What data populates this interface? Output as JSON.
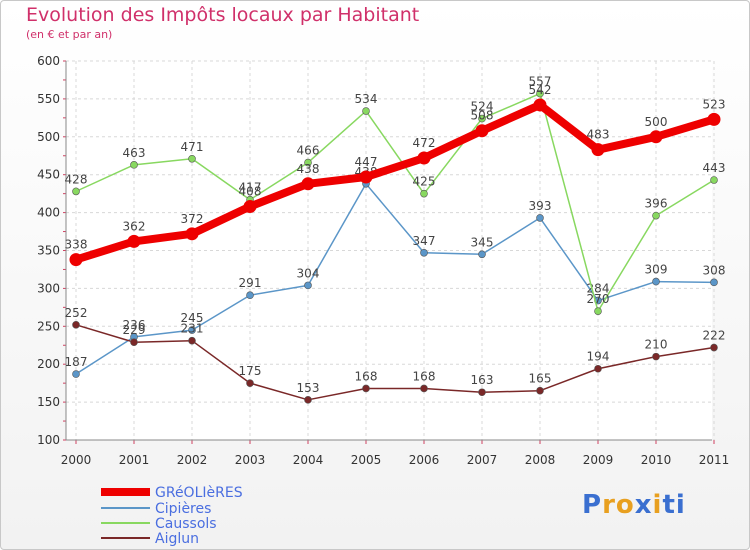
{
  "title": "Evolution des Impôts locaux par Habitant",
  "subtitle": "(en € et par an)",
  "logo": {
    "text": "Proxiti",
    "letters": [
      "P",
      "r",
      "o",
      "x",
      "i",
      "t",
      "i"
    ],
    "colors": [
      "#3a6fd0",
      "#e8a020",
      "#e8a020",
      "#3a6fd0",
      "#e8a020",
      "#3a6fd0",
      "#3a6fd0"
    ]
  },
  "chart_data": {
    "type": "line",
    "title": "Evolution des Impôts locaux par Habitant",
    "ylabel": "(en € et par an)",
    "xlabel": "",
    "categories": [
      "2000",
      "2001",
      "2002",
      "2003",
      "2004",
      "2005",
      "2006",
      "2007",
      "2008",
      "2009",
      "2010",
      "2011"
    ],
    "ylim": [
      100,
      600
    ],
    "yticks": [
      100,
      150,
      200,
      250,
      300,
      350,
      400,
      450,
      500,
      550,
      600
    ],
    "grid": true,
    "legend_position": "bottom-left",
    "series": [
      {
        "name": "GRéOLIèRES",
        "color": "#ee0000",
        "values": [
          338,
          362,
          372,
          408,
          438,
          447,
          472,
          508,
          542,
          483,
          500,
          523
        ]
      },
      {
        "name": "Cipières",
        "color": "#5b96c8",
        "values": [
          187,
          236,
          245,
          291,
          304,
          438,
          347,
          345,
          393,
          284,
          309,
          308
        ]
      },
      {
        "name": "Caussols",
        "color": "#88d860",
        "values": [
          428,
          463,
          471,
          417,
          466,
          534,
          425,
          524,
          557,
          270,
          396,
          443
        ]
      },
      {
        "name": "Aiglun",
        "color": "#7a2828",
        "values": [
          252,
          229,
          231,
          175,
          153,
          168,
          168,
          163,
          165,
          194,
          210,
          222
        ]
      }
    ]
  }
}
